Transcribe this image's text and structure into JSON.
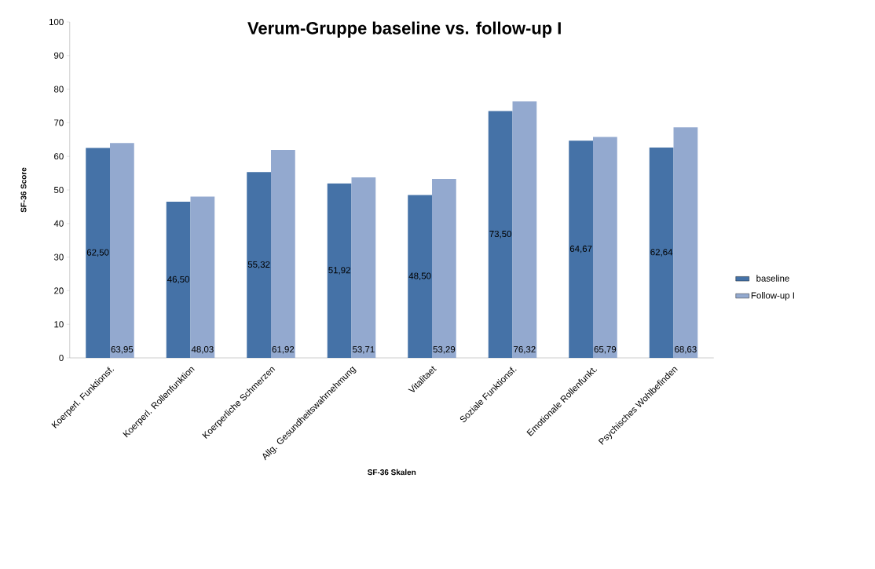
{
  "chart_data": {
    "type": "bar",
    "title": "Verum-Gruppe baseline vs. follow-up I",
    "xlabel": "SF-36 Skalen",
    "ylabel": "SF-36 Score",
    "categories": [
      "Koerperl. Funktionsf.",
      "Koerperl. Rollenfunktion",
      "Koerperliche Schmerzen",
      "Allg. Gesundheitswahrnehmung",
      "Vitalitaet",
      "Soziale Funktionsf.",
      "Emotionale Rollenfunkt.",
      "Psychisches Wohlbefinden"
    ],
    "series": [
      {
        "name": "baseline",
        "color": "#4572a7",
        "values": [
          62.5,
          46.5,
          55.32,
          51.92,
          48.5,
          73.5,
          64.67,
          62.64
        ],
        "value_labels": [
          "62,50",
          "46,50",
          "55,32",
          "51,92",
          "48,50",
          "73,50",
          "64,67",
          "62,64"
        ]
      },
      {
        "name": "Follow-up I",
        "color": "#93a9cf",
        "values": [
          63.95,
          48.03,
          61.92,
          53.71,
          53.29,
          76.32,
          65.79,
          68.63
        ],
        "value_labels": [
          "63,95",
          "48,03",
          "61,92",
          "53,71",
          "53,29",
          "76,32",
          "65,79",
          "68,63"
        ]
      }
    ],
    "ylim": [
      0,
      100
    ],
    "yticks": [
      0,
      10,
      20,
      30,
      40,
      50,
      60,
      70,
      80,
      90,
      100
    ],
    "grid": false,
    "legend": "right"
  }
}
